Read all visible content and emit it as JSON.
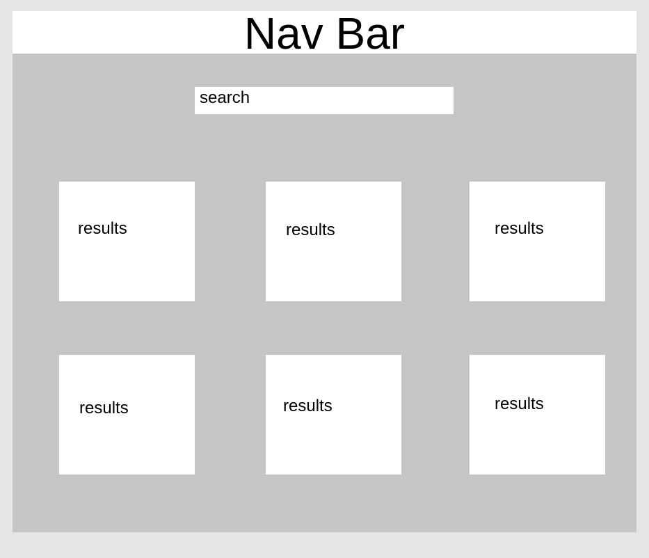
{
  "navbar": {
    "title": "Nav Bar"
  },
  "search": {
    "placeholder": "search",
    "value": ""
  },
  "results": [
    {
      "label": "results"
    },
    {
      "label": "results"
    },
    {
      "label": "results"
    },
    {
      "label": "results"
    },
    {
      "label": "results"
    },
    {
      "label": "results"
    }
  ],
  "colors": {
    "page_background": "#e5e5e5",
    "content_background": "#c6c6c6",
    "panel_background": "#ffffff",
    "text": "#000000"
  }
}
